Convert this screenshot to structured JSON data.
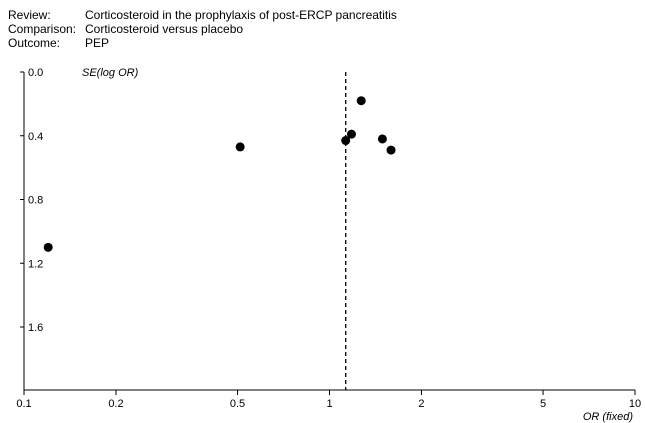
{
  "header": {
    "review_label": "Review:",
    "review_value": "Corticosteroid in the prophylaxis of post-ERCP pancreatitis",
    "comparison_label": "Comparison:",
    "comparison_value": "Corticosteroid versus placebo",
    "outcome_label": "Outcome:",
    "outcome_value": "PEP"
  },
  "chart_data": {
    "type": "scatter",
    "title": "",
    "xlabel": "OR (fixed)",
    "ylabel": "SE(log OR)",
    "x_scale": "log",
    "xlim": [
      0.1,
      10
    ],
    "ylim": [
      0.0,
      2.0
    ],
    "y_inverted": true,
    "x_ticks": [
      0.1,
      0.2,
      0.5,
      1,
      2,
      5,
      10
    ],
    "x_tick_labels": [
      "0.1",
      "0.2",
      "0.5",
      "1",
      "2",
      "5",
      "10"
    ],
    "y_ticks": [
      0.0,
      0.4,
      0.8,
      1.2,
      1.6
    ],
    "y_tick_labels": [
      "0.0",
      "0.4",
      "0.8",
      "1.2",
      "1.6"
    ],
    "pooled_or": 1.13,
    "points": [
      {
        "x": 0.12,
        "y": 1.1
      },
      {
        "x": 0.51,
        "y": 0.47
      },
      {
        "x": 1.13,
        "y": 0.43
      },
      {
        "x": 1.18,
        "y": 0.39
      },
      {
        "x": 1.27,
        "y": 0.18
      },
      {
        "x": 1.49,
        "y": 0.42
      },
      {
        "x": 1.59,
        "y": 0.49
      }
    ],
    "grid": false,
    "legend": "none"
  }
}
